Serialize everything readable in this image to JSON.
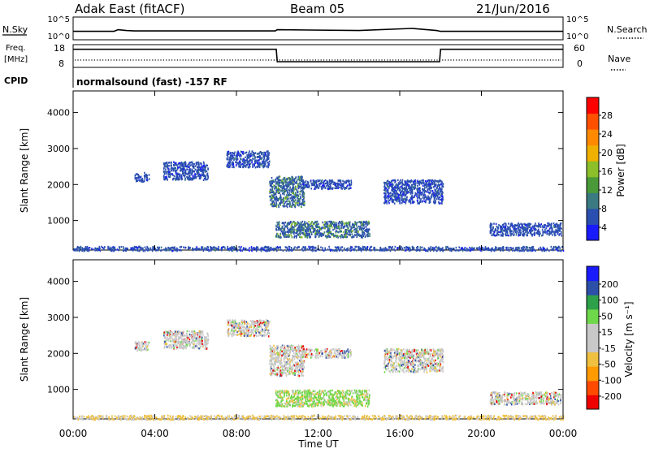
{
  "header": {
    "station": "Adak East (fitACF)",
    "beam": "Beam 05",
    "date": "21/Jun/2016"
  },
  "top_labels": {
    "nsky": "N.Sky",
    "nsearch": "N.Search",
    "freq": "Freq.",
    "freq_unit": "[MHz]",
    "nave": "Nave",
    "cpid": "CPID",
    "program": "normalsound (fast) -157 RF",
    "noise_hi": "10^5",
    "noise_lo": "10^0",
    "freq_hi": "18",
    "freq_lo": "8",
    "nave_hi": "60",
    "nave_lo": "0"
  },
  "time_axis": {
    "label": "Time UT",
    "ticks": [
      "00:00",
      "04:00",
      "08:00",
      "12:00",
      "16:00",
      "20:00",
      "00:00"
    ]
  },
  "colors": {
    "power_bar": [
      "#1a1aff",
      "#2b4fb0",
      "#3a7a80",
      "#4a9a3a",
      "#8cbf2a",
      "#f0b000",
      "#ff8a00",
      "#ff5000",
      "#ff0000"
    ],
    "velocity_bar": [
      "#ee0000",
      "#ff4a00",
      "#ff9a00",
      "#f0c040",
      "#c8c8c8",
      "#c8c8c8",
      "#6fd84a",
      "#2ea04a",
      "#2c4fa8",
      "#1a1aff"
    ]
  },
  "chart_data": [
    {
      "type": "line",
      "name": "sky-noise",
      "title": "Adak East (fitACF)",
      "xlabel": "Time UT",
      "ylabel": "N.Sky",
      "xlim": [
        0,
        24
      ],
      "series": [
        {
          "name": "N.Sky",
          "x": [
            0,
            2,
            2.2,
            2.6,
            3,
            9.9,
            10,
            14,
            16.6,
            17.8,
            18,
            24
          ],
          "values": [
            1.8,
            1.8,
            2.2,
            2.0,
            1.9,
            1.9,
            2.2,
            2.0,
            2.5,
            2.0,
            1.8,
            1.8
          ]
        }
      ]
    },
    {
      "type": "line",
      "name": "frequency",
      "ylabel": "Freq. [MHz]",
      "ylim": [
        8,
        18
      ],
      "xlim": [
        0,
        24
      ],
      "series": [
        {
          "name": "Freq.",
          "x": [
            0,
            9.95,
            10,
            17.95,
            18,
            24
          ],
          "values": [
            16.2,
            16.2,
            10.3,
            10.3,
            16.2,
            16.2
          ]
        }
      ]
    },
    {
      "type": "heatmap",
      "name": "power",
      "ylabel": "Slant Range [km]",
      "xlabel": "Time UT",
      "colorbar_label": "Power [dB]",
      "colorbar_ticks": [
        "28",
        "24",
        "20",
        "16",
        "12",
        "8",
        "4"
      ],
      "ylim": [
        180,
        4600
      ],
      "yticks": [
        1000,
        2000,
        3000,
        4000
      ],
      "xlim": [
        0,
        24
      ],
      "regions": [
        {
          "t0": 3.0,
          "t1": 3.7,
          "r0": 2100,
          "r1": 2350,
          "level": 1
        },
        {
          "t0": 4.4,
          "t1": 6.6,
          "r0": 2150,
          "r1": 2650,
          "level": 1
        },
        {
          "t0": 7.5,
          "t1": 9.6,
          "r0": 2500,
          "r1": 2950,
          "level": 1
        },
        {
          "t0": 9.6,
          "t1": 11.3,
          "r0": 1400,
          "r1": 2250,
          "level": 2
        },
        {
          "t0": 11.2,
          "t1": 13.6,
          "r0": 1900,
          "r1": 2150,
          "level": 1
        },
        {
          "t0": 9.9,
          "t1": 14.5,
          "r0": 550,
          "r1": 1000,
          "level": 2
        },
        {
          "t0": 15.2,
          "t1": 18.1,
          "r0": 1500,
          "r1": 2150,
          "level": 1
        },
        {
          "t0": 20.4,
          "t1": 23.9,
          "r0": 600,
          "r1": 950,
          "level": 1
        },
        {
          "t0": 0.0,
          "t1": 24.0,
          "r0": 180,
          "r1": 300,
          "level": 1
        }
      ]
    },
    {
      "type": "heatmap",
      "name": "velocity",
      "ylabel": "Slant Range [km]",
      "xlabel": "Time UT",
      "colorbar_label": "Velocity [m s⁻¹]",
      "colorbar_ticks": [
        "200",
        "100",
        "50",
        "15",
        "-15",
        "-50",
        "-100",
        "-200"
      ],
      "ylim": [
        180,
        4600
      ],
      "yticks": [
        1000,
        2000,
        3000,
        4000
      ],
      "xlim": [
        0,
        24
      ],
      "regions": [
        {
          "t0": 3.0,
          "t1": 3.7,
          "r0": 2100,
          "r1": 2350,
          "level": "grey"
        },
        {
          "t0": 4.4,
          "t1": 6.6,
          "r0": 2150,
          "r1": 2650,
          "level": "grey"
        },
        {
          "t0": 7.5,
          "t1": 9.6,
          "r0": 2500,
          "r1": 2950,
          "level": "grey"
        },
        {
          "t0": 9.6,
          "t1": 11.3,
          "r0": 1400,
          "r1": 2250,
          "level": "grey"
        },
        {
          "t0": 11.2,
          "t1": 13.6,
          "r0": 1900,
          "r1": 2150,
          "level": "grey"
        },
        {
          "t0": 9.9,
          "t1": 14.5,
          "r0": 550,
          "r1": 1000,
          "level": "green"
        },
        {
          "t0": 15.2,
          "t1": 18.1,
          "r0": 1500,
          "r1": 2150,
          "level": "grey"
        },
        {
          "t0": 20.4,
          "t1": 23.9,
          "r0": 600,
          "r1": 950,
          "level": "grey"
        },
        {
          "t0": 0.0,
          "t1": 24.0,
          "r0": 180,
          "r1": 300,
          "level": "yellow"
        }
      ]
    }
  ]
}
